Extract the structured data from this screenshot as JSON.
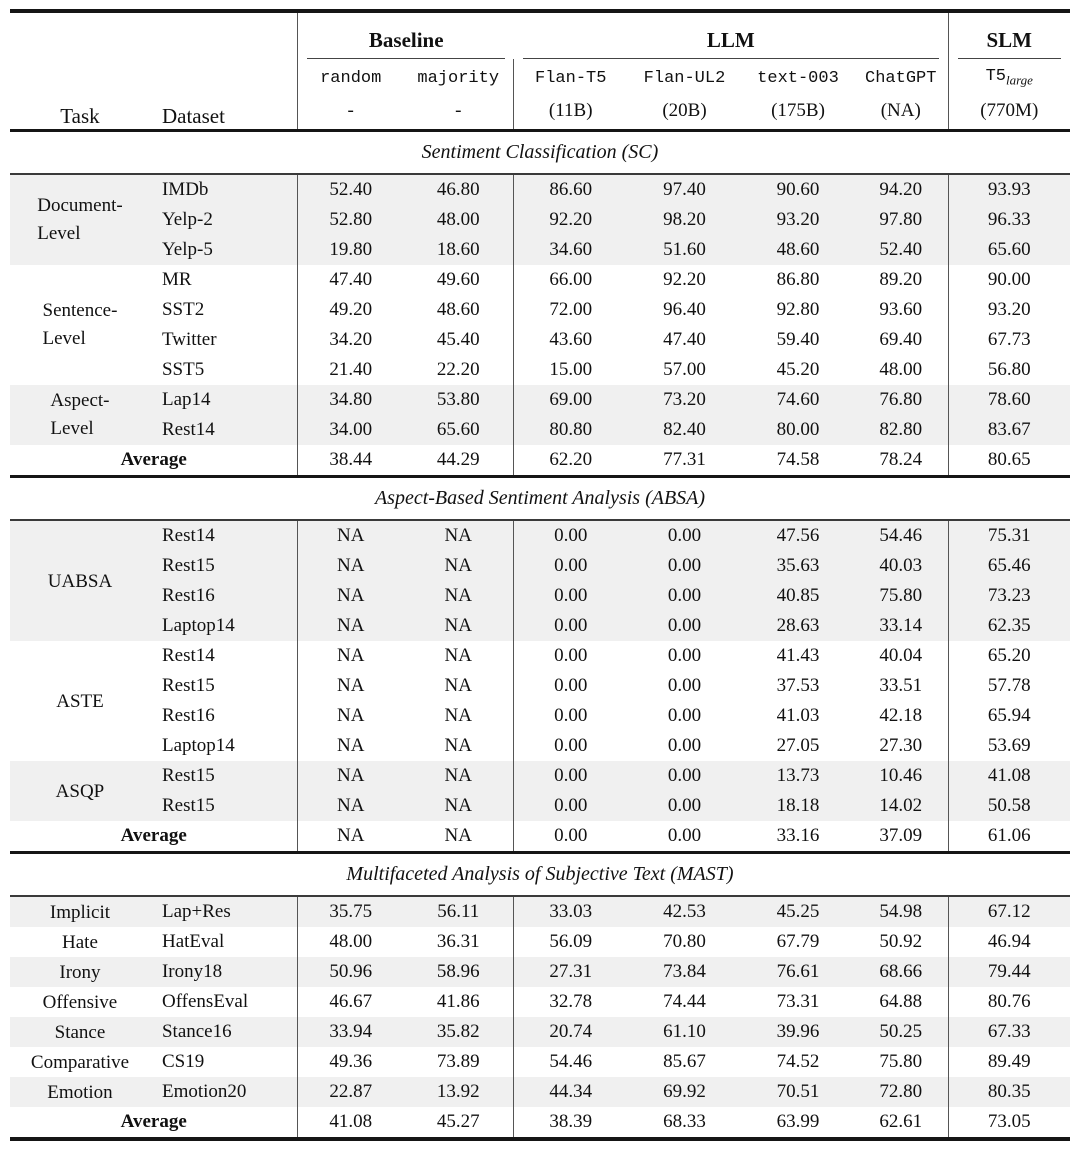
{
  "style": {
    "row_shade": "#f0f0f0",
    "rule_heavy": "#151515",
    "rule_light": "#555555",
    "ink": "#111111"
  },
  "table": {
    "header": {
      "task": "Task",
      "dataset": "Dataset",
      "groups": [
        {
          "name": "Baseline",
          "models": [
            {
              "name": "random",
              "size": "-"
            },
            {
              "name": "majority",
              "size": "-"
            }
          ]
        },
        {
          "name": "LLM",
          "models": [
            {
              "name": "Flan-T5",
              "size": "(11B)"
            },
            {
              "name": "Flan-UL2",
              "size": "(20B)"
            },
            {
              "name": "text-003",
              "size": "(175B)"
            },
            {
              "name": "ChatGPT",
              "size": "(NA)"
            }
          ]
        },
        {
          "name": "SLM",
          "models": [
            {
              "name": "T5",
              "sub": "large",
              "size": "(770M)"
            }
          ]
        }
      ]
    },
    "sections": [
      {
        "title": "Sentiment Classification (SC)",
        "groups": [
          {
            "task": [
              "Document-",
              "Level"
            ],
            "shaded": true,
            "rows": [
              {
                "dataset": "IMDb",
                "values": [
                  "52.40",
                  "46.80",
                  "86.60",
                  "97.40",
                  "90.60",
                  "94.20",
                  "93.93"
                ]
              },
              {
                "dataset": "Yelp-2",
                "values": [
                  "52.80",
                  "48.00",
                  "92.20",
                  "98.20",
                  "93.20",
                  "97.80",
                  "96.33"
                ]
              },
              {
                "dataset": "Yelp-5",
                "values": [
                  "19.80",
                  "18.60",
                  "34.60",
                  "51.60",
                  "48.60",
                  "52.40",
                  "65.60"
                ]
              }
            ]
          },
          {
            "task": [
              "Sentence-",
              "Level"
            ],
            "shaded": false,
            "rows": [
              {
                "dataset": "MR",
                "values": [
                  "47.40",
                  "49.60",
                  "66.00",
                  "92.20",
                  "86.80",
                  "89.20",
                  "90.00"
                ]
              },
              {
                "dataset": "SST2",
                "values": [
                  "49.20",
                  "48.60",
                  "72.00",
                  "96.40",
                  "92.80",
                  "93.60",
                  "93.20"
                ]
              },
              {
                "dataset": "Twitter",
                "values": [
                  "34.20",
                  "45.40",
                  "43.60",
                  "47.40",
                  "59.40",
                  "69.40",
                  "67.73"
                ]
              },
              {
                "dataset": "SST5",
                "values": [
                  "21.40",
                  "22.20",
                  "15.00",
                  "57.00",
                  "45.20",
                  "48.00",
                  "56.80"
                ]
              }
            ]
          },
          {
            "task": [
              "Aspect-",
              "Level"
            ],
            "shaded": true,
            "rows": [
              {
                "dataset": "Lap14",
                "values": [
                  "34.80",
                  "53.80",
                  "69.00",
                  "73.20",
                  "74.60",
                  "76.80",
                  "78.60"
                ]
              },
              {
                "dataset": "Rest14",
                "values": [
                  "34.00",
                  "65.60",
                  "80.80",
                  "82.40",
                  "80.00",
                  "82.80",
                  "83.67"
                ]
              }
            ]
          }
        ],
        "average": {
          "label": "Average",
          "shaded": false,
          "values": [
            "38.44",
            "44.29",
            "62.20",
            "77.31",
            "74.58",
            "78.24",
            "80.65"
          ]
        }
      },
      {
        "title": "Aspect-Based Sentiment Analysis (ABSA)",
        "groups": [
          {
            "task": [
              "UABSA"
            ],
            "shaded": true,
            "rows": [
              {
                "dataset": "Rest14",
                "values": [
                  "NA",
                  "NA",
                  "0.00",
                  "0.00",
                  "47.56",
                  "54.46",
                  "75.31"
                ]
              },
              {
                "dataset": "Rest15",
                "values": [
                  "NA",
                  "NA",
                  "0.00",
                  "0.00",
                  "35.63",
                  "40.03",
                  "65.46"
                ]
              },
              {
                "dataset": "Rest16",
                "values": [
                  "NA",
                  "NA",
                  "0.00",
                  "0.00",
                  "40.85",
                  "75.80",
                  "73.23"
                ]
              },
              {
                "dataset": "Laptop14",
                "values": [
                  "NA",
                  "NA",
                  "0.00",
                  "0.00",
                  "28.63",
                  "33.14",
                  "62.35"
                ]
              }
            ]
          },
          {
            "task": [
              "ASTE"
            ],
            "shaded": false,
            "rows": [
              {
                "dataset": "Rest14",
                "values": [
                  "NA",
                  "NA",
                  "0.00",
                  "0.00",
                  "41.43",
                  "40.04",
                  "65.20"
                ]
              },
              {
                "dataset": "Rest15",
                "values": [
                  "NA",
                  "NA",
                  "0.00",
                  "0.00",
                  "37.53",
                  "33.51",
                  "57.78"
                ]
              },
              {
                "dataset": "Rest16",
                "values": [
                  "NA",
                  "NA",
                  "0.00",
                  "0.00",
                  "41.03",
                  "42.18",
                  "65.94"
                ]
              },
              {
                "dataset": "Laptop14",
                "values": [
                  "NA",
                  "NA",
                  "0.00",
                  "0.00",
                  "27.05",
                  "27.30",
                  "53.69"
                ]
              }
            ]
          },
          {
            "task": [
              "ASQP"
            ],
            "shaded": true,
            "rows": [
              {
                "dataset": "Rest15",
                "values": [
                  "NA",
                  "NA",
                  "0.00",
                  "0.00",
                  "13.73",
                  "10.46",
                  "41.08"
                ]
              },
              {
                "dataset": "Rest15",
                "values": [
                  "NA",
                  "NA",
                  "0.00",
                  "0.00",
                  "18.18",
                  "14.02",
                  "50.58"
                ]
              }
            ]
          }
        ],
        "average": {
          "label": "Average",
          "shaded": false,
          "values": [
            "NA",
            "NA",
            "0.00",
            "0.00",
            "33.16",
            "37.09",
            "61.06"
          ]
        }
      },
      {
        "title": "Multifaceted Analysis of Subjective Text (MAST)",
        "groups": [
          {
            "task": [
              "Implicit"
            ],
            "shaded": true,
            "rows": [
              {
                "dataset": "Lap+Res",
                "values": [
                  "35.75",
                  "56.11",
                  "33.03",
                  "42.53",
                  "45.25",
                  "54.98",
                  "67.12"
                ]
              }
            ]
          },
          {
            "task": [
              "Hate"
            ],
            "shaded": false,
            "rows": [
              {
                "dataset": "HatEval",
                "values": [
                  "48.00",
                  "36.31",
                  "56.09",
                  "70.80",
                  "67.79",
                  "50.92",
                  "46.94"
                ]
              }
            ]
          },
          {
            "task": [
              "Irony"
            ],
            "shaded": true,
            "rows": [
              {
                "dataset": "Irony18",
                "values": [
                  "50.96",
                  "58.96",
                  "27.31",
                  "73.84",
                  "76.61",
                  "68.66",
                  "79.44"
                ]
              }
            ]
          },
          {
            "task": [
              "Offensive"
            ],
            "shaded": false,
            "rows": [
              {
                "dataset": "OffensEval",
                "values": [
                  "46.67",
                  "41.86",
                  "32.78",
                  "74.44",
                  "73.31",
                  "64.88",
                  "80.76"
                ]
              }
            ]
          },
          {
            "task": [
              "Stance"
            ],
            "shaded": true,
            "rows": [
              {
                "dataset": "Stance16",
                "values": [
                  "33.94",
                  "35.82",
                  "20.74",
                  "61.10",
                  "39.96",
                  "50.25",
                  "67.33"
                ]
              }
            ]
          },
          {
            "task": [
              "Comparative"
            ],
            "shaded": false,
            "rows": [
              {
                "dataset": "CS19",
                "values": [
                  "49.36",
                  "73.89",
                  "54.46",
                  "85.67",
                  "74.52",
                  "75.80",
                  "89.49"
                ]
              }
            ]
          },
          {
            "task": [
              "Emotion"
            ],
            "shaded": true,
            "rows": [
              {
                "dataset": "Emotion20",
                "values": [
                  "22.87",
                  "13.92",
                  "44.34",
                  "69.92",
                  "70.51",
                  "72.80",
                  "80.35"
                ]
              }
            ]
          }
        ],
        "average": {
          "label": "Average",
          "shaded": false,
          "values": [
            "41.08",
            "45.27",
            "38.39",
            "68.33",
            "63.99",
            "62.61",
            "73.05"
          ]
        }
      }
    ]
  }
}
